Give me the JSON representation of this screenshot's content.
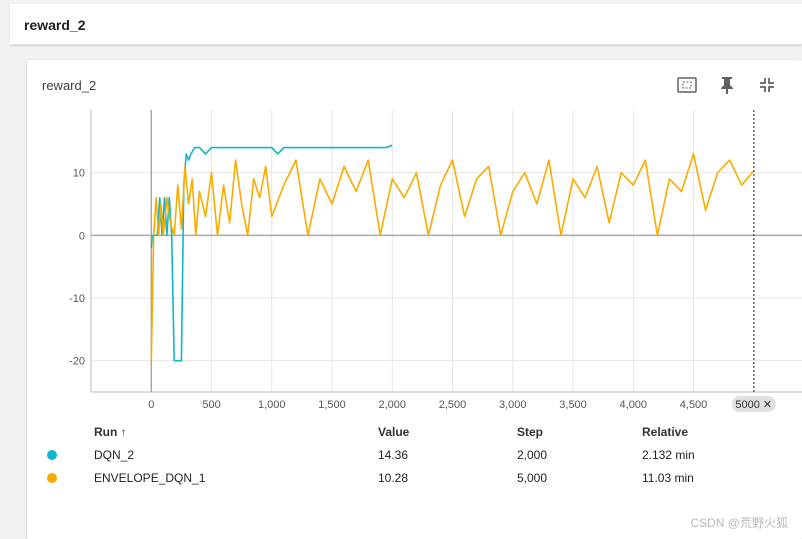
{
  "header": {
    "title": "reward_2"
  },
  "card": {
    "title": "reward_2",
    "toolbar": [
      {
        "name": "fit-domain-icon"
      },
      {
        "name": "pin-icon"
      },
      {
        "name": "collapse-icon"
      },
      {
        "name": "more-icon"
      }
    ]
  },
  "step_chip": "5000 ✕",
  "table": {
    "headers": {
      "run": "Run ↑",
      "value": "Value",
      "step": "Step",
      "relative": "Relative"
    },
    "rows": [
      {
        "run": "DQN_2",
        "value": "14.36",
        "step": "2,000",
        "relative": "2.132 min",
        "color": "#12b5cb"
      },
      {
        "run": "ENVELOPE_DQN_1",
        "value": "10.28",
        "step": "5,000",
        "relative": "11.03 min",
        "color": "#f9ab00"
      }
    ]
  },
  "watermark": "CSDN @荒野火狐",
  "chart_data": {
    "type": "line",
    "xlim": [
      -500,
      5400
    ],
    "ylim": [
      -25,
      20
    ],
    "x_ticks": [
      0,
      500,
      1000,
      1500,
      2000,
      2500,
      3000,
      3500,
      4000,
      4500
    ],
    "x_tick_labels": [
      "0",
      "500",
      "1,000",
      "1,500",
      "2,000",
      "2,500",
      "3,000",
      "3,500",
      "4,000",
      "4,500"
    ],
    "y_ticks": [
      -20,
      -10,
      0,
      10
    ],
    "y_tick_labels": [
      "-20",
      "-10",
      "0",
      "10"
    ],
    "grid": true,
    "cursor_step": 5000,
    "series": [
      {
        "name": "DQN_2",
        "color": "#12b5cb",
        "x": [
          0,
          10,
          30,
          50,
          70,
          90,
          110,
          130,
          150,
          170,
          190,
          210,
          230,
          250,
          270,
          290,
          310,
          330,
          360,
          400,
          450,
          500,
          550,
          600,
          650,
          700,
          750,
          800,
          850,
          900,
          950,
          1000,
          1050,
          1100,
          1150,
          1200,
          1250,
          1300,
          1350,
          1400,
          1450,
          1500,
          1550,
          1600,
          1650,
          1700,
          1750,
          1800,
          1850,
          1900,
          1950,
          2000
        ],
        "y": [
          -2,
          0,
          0,
          0,
          6,
          0,
          6,
          0,
          6,
          0,
          -20,
          -20,
          -20,
          -20,
          8,
          13,
          12,
          13,
          14,
          14,
          13,
          14,
          14,
          14,
          14,
          14,
          14,
          14,
          14,
          14,
          14,
          14,
          13,
          14,
          14,
          14,
          14,
          14,
          14,
          14,
          14,
          14,
          14,
          14,
          14,
          14,
          14,
          14,
          14,
          14,
          14,
          14.36
        ]
      },
      {
        "name": "ENVELOPE_DQN_1",
        "color": "#f9ab00",
        "x": [
          0,
          20,
          40,
          60,
          80,
          100,
          130,
          160,
          190,
          220,
          250,
          280,
          310,
          340,
          370,
          400,
          450,
          500,
          550,
          600,
          650,
          700,
          750,
          800,
          850,
          900,
          950,
          1000,
          1100,
          1200,
          1300,
          1400,
          1500,
          1600,
          1700,
          1800,
          1900,
          2000,
          2100,
          2200,
          2300,
          2400,
          2500,
          2600,
          2700,
          2800,
          2900,
          3000,
          3100,
          3200,
          3300,
          3400,
          3500,
          3600,
          3700,
          3800,
          3900,
          4000,
          4100,
          4200,
          4300,
          4400,
          4500,
          4600,
          4700,
          4800,
          4900,
          5000
        ],
        "y": [
          -20,
          0,
          6,
          0,
          5,
          0,
          6,
          2,
          0,
          8,
          1,
          11,
          5,
          9,
          0,
          7,
          3,
          10,
          0,
          8,
          2,
          12,
          5,
          0,
          9,
          6,
          11,
          3,
          8,
          12,
          0,
          9,
          5,
          11,
          7,
          12,
          0,
          9,
          6,
          10,
          0,
          8,
          12,
          3,
          9,
          11,
          0,
          7,
          10,
          5,
          12,
          0,
          9,
          6,
          11,
          2,
          10,
          8,
          12,
          0,
          9,
          7,
          13,
          4,
          10,
          12,
          8,
          10.28
        ]
      }
    ]
  }
}
